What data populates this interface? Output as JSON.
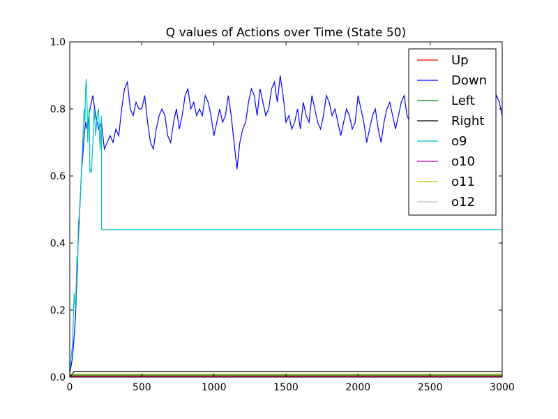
{
  "chart_data": {
    "type": "line",
    "title": "Q values of Actions over Time (State 50)",
    "xlabel": "",
    "ylabel": "",
    "xlim": [
      0,
      3000
    ],
    "ylim": [
      0.0,
      1.0
    ],
    "x_ticks": [
      0,
      500,
      1000,
      1500,
      2000,
      2500,
      3000
    ],
    "x_tick_labels": [
      "0",
      "500",
      "1000",
      "1500",
      "2000",
      "2500",
      "3000"
    ],
    "y_ticks": [
      0.0,
      0.2,
      0.4,
      0.6,
      0.8,
      1.0
    ],
    "y_tick_labels": [
      "0.0",
      "0.2",
      "0.4",
      "0.6",
      "0.8",
      "1.0"
    ],
    "grid": false,
    "legend_position": "top-right",
    "series": [
      {
        "name": "Up",
        "color": "#ff0000",
        "x": [
          0,
          3000
        ],
        "y": [
          0.003,
          0.003
        ]
      },
      {
        "name": "Down",
        "color": "#0000ff",
        "x": [
          0,
          20,
          40,
          60,
          80,
          100,
          110,
          120,
          140,
          160,
          180,
          200,
          220,
          240,
          260,
          280,
          300,
          320,
          340,
          360,
          380,
          400,
          420,
          440,
          460,
          480,
          500,
          520,
          540,
          560,
          580,
          600,
          620,
          640,
          660,
          680,
          700,
          720,
          740,
          760,
          780,
          800,
          820,
          840,
          860,
          880,
          900,
          920,
          940,
          960,
          980,
          1000,
          1020,
          1040,
          1060,
          1080,
          1100,
          1120,
          1140,
          1160,
          1180,
          1200,
          1220,
          1240,
          1260,
          1280,
          1300,
          1320,
          1340,
          1360,
          1380,
          1400,
          1420,
          1440,
          1460,
          1480,
          1500,
          1520,
          1540,
          1560,
          1580,
          1600,
          1620,
          1640,
          1660,
          1680,
          1700,
          1720,
          1740,
          1760,
          1780,
          1800,
          1820,
          1840,
          1860,
          1880,
          1900,
          1920,
          1940,
          1960,
          1980,
          2000,
          2020,
          2040,
          2060,
          2080,
          2100,
          2120,
          2140,
          2160,
          2180,
          2200,
          2220,
          2240,
          2260,
          2280,
          2300,
          2320,
          2340,
          2360,
          2380,
          2400,
          2420,
          2440,
          2460,
          2480,
          2500,
          2520,
          2540,
          2560,
          2580,
          2600,
          2620,
          2640,
          2660,
          2680,
          2700,
          2720,
          2740,
          2760,
          2780,
          2800,
          2820,
          2840,
          2860,
          2880,
          2900,
          2920,
          2940,
          2960,
          2980,
          3000
        ],
        "y": [
          0.01,
          0.06,
          0.18,
          0.42,
          0.6,
          0.72,
          0.76,
          0.74,
          0.8,
          0.84,
          0.78,
          0.74,
          0.76,
          0.68,
          0.7,
          0.72,
          0.7,
          0.74,
          0.72,
          0.8,
          0.86,
          0.88,
          0.8,
          0.78,
          0.82,
          0.8,
          0.8,
          0.84,
          0.76,
          0.7,
          0.68,
          0.74,
          0.78,
          0.8,
          0.78,
          0.72,
          0.7,
          0.76,
          0.8,
          0.74,
          0.78,
          0.84,
          0.86,
          0.8,
          0.82,
          0.78,
          0.8,
          0.78,
          0.84,
          0.82,
          0.78,
          0.72,
          0.76,
          0.8,
          0.76,
          0.78,
          0.84,
          0.78,
          0.7,
          0.62,
          0.7,
          0.74,
          0.76,
          0.82,
          0.86,
          0.84,
          0.78,
          0.86,
          0.82,
          0.78,
          0.8,
          0.86,
          0.88,
          0.82,
          0.9,
          0.84,
          0.76,
          0.78,
          0.74,
          0.76,
          0.8,
          0.74,
          0.82,
          0.78,
          0.76,
          0.84,
          0.8,
          0.76,
          0.74,
          0.78,
          0.84,
          0.82,
          0.78,
          0.8,
          0.76,
          0.72,
          0.76,
          0.8,
          0.78,
          0.74,
          0.76,
          0.84,
          0.8,
          0.76,
          0.7,
          0.74,
          0.78,
          0.8,
          0.74,
          0.7,
          0.76,
          0.8,
          0.82,
          0.78,
          0.74,
          0.78,
          0.82,
          0.84,
          0.78,
          0.76,
          0.8,
          0.72,
          0.66,
          0.74,
          0.78,
          0.76,
          0.8,
          0.78,
          0.74,
          0.76,
          0.8,
          0.78,
          0.76,
          0.82,
          0.8,
          0.76,
          0.78,
          0.8,
          0.76,
          0.8,
          0.74,
          0.78,
          0.82,
          0.76,
          0.8,
          0.78,
          0.74,
          0.78,
          0.8,
          0.84,
          0.82,
          0.78
        ]
      },
      {
        "name": "Left",
        "color": "#008000",
        "x": [
          0,
          3000
        ],
        "y": [
          0.006,
          0.006
        ]
      },
      {
        "name": "Right",
        "color": "#000000",
        "x": [
          0,
          30,
          3000
        ],
        "y": [
          0.0,
          0.017,
          0.017
        ]
      },
      {
        "name": "o9",
        "color": "#00bfbf",
        "x": [
          0,
          20,
          30,
          40,
          50,
          55,
          60,
          70,
          80,
          90,
          100,
          105,
          110,
          115,
          120,
          125,
          130,
          135,
          140,
          145,
          150,
          160,
          170,
          180,
          190,
          200,
          210,
          220,
          220,
          3000
        ],
        "y": [
          0.02,
          0.1,
          0.25,
          0.2,
          0.36,
          0.34,
          0.46,
          0.5,
          0.6,
          0.7,
          0.8,
          0.76,
          0.86,
          0.89,
          0.82,
          0.7,
          0.76,
          0.8,
          0.61,
          0.62,
          0.61,
          0.7,
          0.8,
          0.72,
          0.78,
          0.8,
          0.68,
          0.78,
          0.44,
          0.44
        ]
      },
      {
        "name": "o10",
        "color": "#bf00bf",
        "x": [
          0,
          3000
        ],
        "y": [
          0.001,
          0.001
        ]
      },
      {
        "name": "o11",
        "color": "#bfbf00",
        "x": [
          0,
          3000
        ],
        "y": [
          0.009,
          0.009
        ]
      },
      {
        "name": "o12",
        "color": "#bfbfbf",
        "x": [
          0,
          3000
        ],
        "y": [
          0.0,
          0.0
        ]
      }
    ]
  }
}
